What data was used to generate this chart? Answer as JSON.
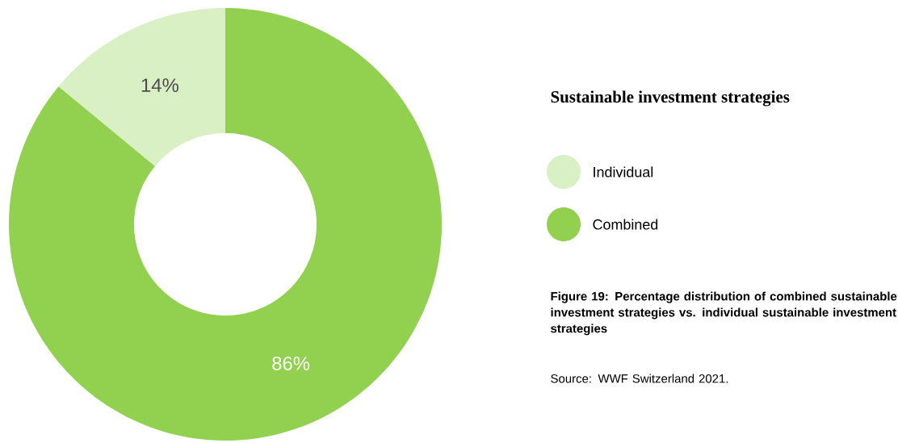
{
  "chart_data": {
    "type": "donut",
    "title": "Sustainable investment strategies",
    "categories": [
      "Individual",
      "Combined"
    ],
    "values": [
      14,
      86
    ],
    "colors": [
      "#d9efc4",
      "#92d050"
    ],
    "value_labels": [
      "14%",
      "86%"
    ],
    "legend": "right",
    "annotations": [
      "Figure 19: Percentage distribution of combined sustainable investment strategies vs. individual sustainable investment strategies",
      "Source: WWF Switzerland 2021."
    ]
  }
}
